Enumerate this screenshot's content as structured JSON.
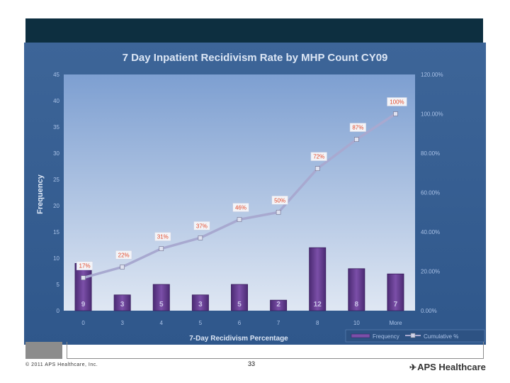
{
  "colors": {
    "panel": "#325a8e",
    "plot_top": "#7d9fd1",
    "plot_bottom": "#dfe7f3",
    "bar": "#6a3f96",
    "bar_edge": "#3b1f5e",
    "line": "#a8a9d0",
    "label_text": "#e24b2c",
    "axis_text": "#a9c1e6",
    "title_text": "#dce6f5"
  },
  "chart_data": {
    "type": "bar",
    "title": "7 Day Inpatient Recidivism Rate by MHP Count CY09",
    "xlabel": "7-Day Recidivism Percentage",
    "ylabel": "Frequency",
    "categories": [
      "0",
      "3",
      "4",
      "5",
      "6",
      "7",
      "8",
      "10",
      "More"
    ],
    "ylim": [
      0,
      45
    ],
    "y_ticks": [
      "0",
      "5",
      "10",
      "15",
      "20",
      "25",
      "30",
      "35",
      "40",
      "45"
    ],
    "y2lim": [
      0,
      120
    ],
    "y2_ticks": [
      "0.00%",
      "20.00%",
      "40.00%",
      "60.00%",
      "80.00%",
      "100.00%",
      "120.00%"
    ],
    "series": [
      {
        "name": "Frequency",
        "kind": "bar",
        "values": [
          9,
          3,
          5,
          3,
          5,
          2,
          12,
          8,
          7
        ],
        "data_labels": [
          "9",
          "3",
          "5",
          "3",
          "5",
          "2",
          "12",
          "8",
          "7"
        ]
      },
      {
        "name": "Cumulative %",
        "kind": "line",
        "axis": "right",
        "values": [
          16.7,
          22.2,
          31.5,
          37.0,
          46.3,
          50.0,
          72.2,
          87.0,
          100.0
        ],
        "data_labels": [
          "17%",
          "22%",
          "31%",
          "37%",
          "46%",
          "50%",
          "72%",
          "87%",
          "100%"
        ]
      }
    ],
    "legend": {
      "position": "bottom-right",
      "items": [
        "Frequency",
        "Cumulative %"
      ]
    }
  },
  "footer": {
    "copyright": "© 2011 APS Healthcare, Inc.",
    "page_number": "33",
    "logo_text": "APS Healthcare"
  }
}
